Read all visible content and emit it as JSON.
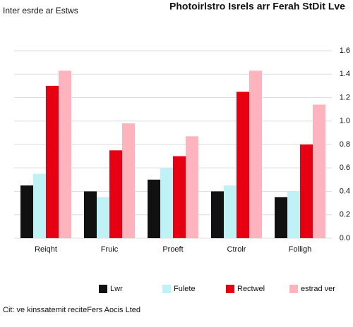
{
  "chart_data": {
    "type": "bar",
    "title": "Photoirlstro Isrels arr Ferah StDit Lve",
    "subtitle": "Inter esrde ar Estws",
    "categories": [
      "Reiqht",
      "Fruic",
      "Proeft",
      "Ctrolr",
      "Folligh"
    ],
    "series": [
      {
        "name": "Lwr",
        "color": "#111111",
        "values": [
          0.45,
          0.4,
          0.5,
          0.4,
          0.35
        ]
      },
      {
        "name": "Fulete",
        "color": "#bff2f5",
        "values": [
          0.55,
          0.35,
          0.6,
          0.45,
          0.4
        ]
      },
      {
        "name": "Rectwel",
        "color": "#e60012",
        "values": [
          1.3,
          0.75,
          0.7,
          1.25,
          0.8
        ]
      },
      {
        "name": "estrad ver",
        "color": "#ffb3bd",
        "values": [
          1.43,
          0.98,
          0.87,
          1.43,
          1.14
        ]
      }
    ],
    "ylim": [
      0,
      1.6
    ],
    "yticks": [
      {
        "value": 0,
        "label": "0.0"
      },
      0.2,
      0.4,
      0.6,
      0.8,
      {
        "value": 1,
        "label": "1.0"
      },
      1.2,
      1.4,
      1.6
    ],
    "grid": true,
    "source": "Cit: ve kinssatemit reciteFers Aocis Lted"
  }
}
